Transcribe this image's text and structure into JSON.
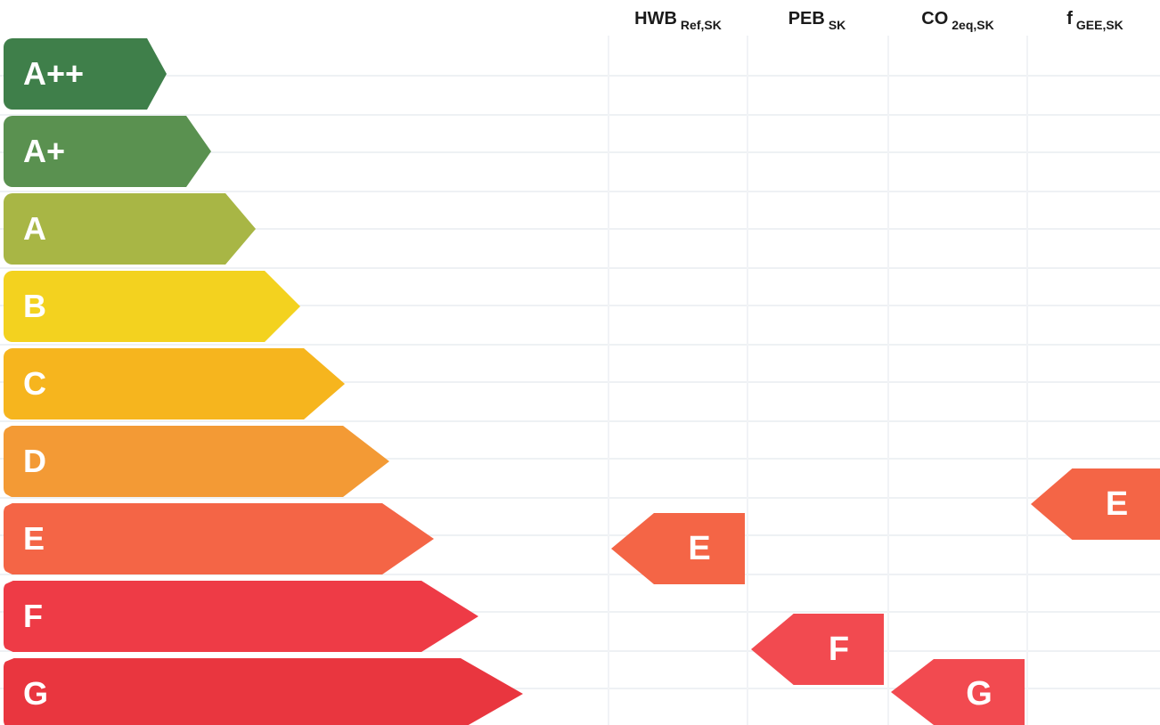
{
  "columns": [
    {
      "main": "HWB",
      "sub": "Ref,SK"
    },
    {
      "main": "PEB",
      "sub": "SK"
    },
    {
      "main": "CO",
      "sub": "2eq,SK"
    },
    {
      "main": "f",
      "sub": "GEE,SK"
    }
  ],
  "classes": [
    {
      "label": "A++",
      "color": "#3f7f4a"
    },
    {
      "label": "A+",
      "color": "#5a9150"
    },
    {
      "label": "A",
      "color": "#a8b645"
    },
    {
      "label": "B",
      "color": "#f3d21f"
    },
    {
      "label": "C",
      "color": "#f6b51e"
    },
    {
      "label": "D",
      "color": "#f39a35"
    },
    {
      "label": "E",
      "color": "#f46546"
    },
    {
      "label": "F",
      "color": "#ee3b46"
    },
    {
      "label": "G",
      "color": "#e9363f"
    }
  ],
  "ratings": [
    {
      "column": "HWB",
      "label": "E",
      "color": "#f46546"
    },
    {
      "column": "PEB",
      "label": "F",
      "color": "#f24a50"
    },
    {
      "column": "CO",
      "label": "G",
      "color": "#f24a50"
    },
    {
      "column": "f",
      "label": "E",
      "color": "#f46546"
    }
  ]
}
